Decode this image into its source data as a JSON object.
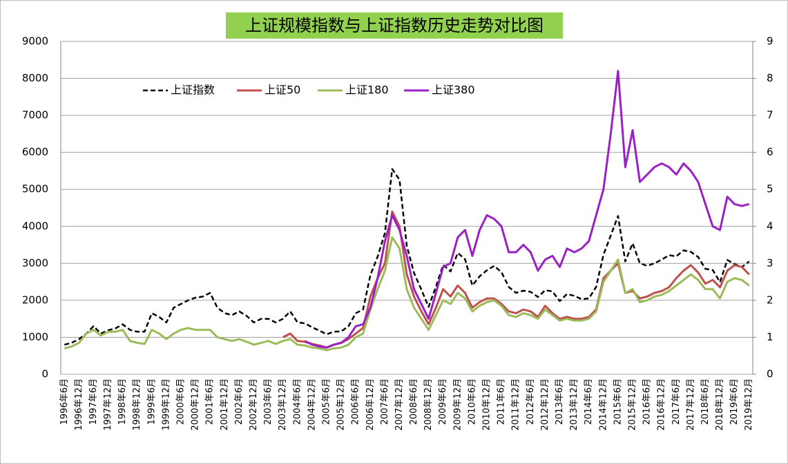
{
  "chart_data": {
    "type": "line",
    "title": "上证规模指数与上证指数历史走势对比图",
    "categories": [
      "1996年6月",
      null,
      "1996年12月",
      null,
      "1997年6月",
      null,
      "1997年12月",
      null,
      "1998年6月",
      null,
      "1998年12月",
      null,
      "1999年6月",
      null,
      "1999年12月",
      null,
      "2000年6月",
      null,
      "2000年12月",
      null,
      "2001年6月",
      null,
      "2001年12月",
      null,
      "2002年6月",
      null,
      "2002年12月",
      null,
      "2003年6月",
      null,
      "2003年12月",
      null,
      "2004年6月",
      null,
      "2004年12月",
      null,
      "2005年6月",
      null,
      "2005年12月",
      null,
      "2006年6月",
      null,
      "2006年12月",
      null,
      "2007年6月",
      null,
      "2007年12月",
      null,
      "2008年6月",
      null,
      "2008年12月",
      null,
      "2009年6月",
      null,
      "2009年12月",
      null,
      "2010年6月",
      null,
      "2010年12月",
      null,
      "2011年6月",
      null,
      "2011年12月",
      null,
      "2012年6月",
      null,
      "2012年12月",
      null,
      "2013年6月",
      null,
      "2013年12月",
      null,
      "2014年6月",
      null,
      "2014年12月",
      null,
      "2015年6月",
      null,
      "2015年12月",
      null,
      "2016年6月",
      null,
      "2016年12月",
      null,
      "2017年6月",
      null,
      "2017年12月",
      null,
      "2018年6月",
      null,
      "2018年12月",
      null,
      "2019年6月",
      null,
      "2019年12月"
    ],
    "series": [
      {
        "name": "上证指数",
        "color": "#000000",
        "style": "dashed",
        "values": [
          800,
          850,
          950,
          1100,
          1300,
          1100,
          1190,
          1240,
          1350,
          1200,
          1150,
          1150,
          1650,
          1550,
          1400,
          1800,
          1900,
          2000,
          2070,
          2100,
          2200,
          1800,
          1650,
          1600,
          1700,
          1580,
          1400,
          1500,
          1500,
          1400,
          1500,
          1700,
          1400,
          1380,
          1270,
          1180,
          1080,
          1150,
          1160,
          1300,
          1650,
          1750,
          2680,
          3180,
          3820,
          5550,
          5260,
          3470,
          2740,
          2290,
          1820,
          2370,
          2960,
          2780,
          3280,
          3110,
          2400,
          2650,
          2810,
          2930,
          2760,
          2360,
          2200,
          2260,
          2230,
          2090,
          2270,
          2240,
          1980,
          2170,
          2120,
          2030,
          2050,
          2360,
          3230,
          3750,
          4280,
          3050,
          3540,
          3000,
          2930,
          3000,
          3100,
          3220,
          3190,
          3350,
          3310,
          3170,
          2850,
          2820,
          2490,
          3090,
          2980,
          2900,
          3050
        ]
      },
      {
        "name": "上证50",
        "color": "#c0504d",
        "style": "solid",
        "axis": "y2",
        "values": [
          null,
          null,
          null,
          null,
          null,
          null,
          null,
          null,
          null,
          null,
          null,
          null,
          null,
          null,
          null,
          null,
          null,
          null,
          null,
          null,
          null,
          null,
          null,
          null,
          null,
          null,
          null,
          null,
          null,
          null,
          1.0,
          1.1,
          0.9,
          0.88,
          0.82,
          0.78,
          0.72,
          0.8,
          0.85,
          0.95,
          1.1,
          1.25,
          2.1,
          2.6,
          3.0,
          4.4,
          4.0,
          2.7,
          2.1,
          1.7,
          1.35,
          1.8,
          2.3,
          2.1,
          2.4,
          2.2,
          1.8,
          1.95,
          2.05,
          2.05,
          1.9,
          1.7,
          1.65,
          1.75,
          1.7,
          1.55,
          1.85,
          1.65,
          1.5,
          1.55,
          1.5,
          1.5,
          1.55,
          1.75,
          2.6,
          2.8,
          3.0,
          2.2,
          2.25,
          2.05,
          2.1,
          2.2,
          2.25,
          2.35,
          2.6,
          2.8,
          2.95,
          2.75,
          2.45,
          2.55,
          2.35,
          2.8,
          2.95,
          2.9,
          2.7
        ]
      },
      {
        "name": "上证180",
        "color": "#9bbb59",
        "style": "solid",
        "axis": "y2",
        "values": [
          0.7,
          0.75,
          0.85,
          1.1,
          1.2,
          1.05,
          1.15,
          1.15,
          1.2,
          0.9,
          0.85,
          0.82,
          1.2,
          1.1,
          0.95,
          1.1,
          1.2,
          1.25,
          1.2,
          1.2,
          1.2,
          1.0,
          0.95,
          0.9,
          0.95,
          0.88,
          0.8,
          0.85,
          0.9,
          0.82,
          0.9,
          0.95,
          0.8,
          0.78,
          0.72,
          0.7,
          0.65,
          0.7,
          0.72,
          0.8,
          1.0,
          1.1,
          1.75,
          2.3,
          2.8,
          3.7,
          3.4,
          2.3,
          1.8,
          1.5,
          1.2,
          1.6,
          2.0,
          1.9,
          2.2,
          2.05,
          1.7,
          1.85,
          1.95,
          2.0,
          1.85,
          1.6,
          1.55,
          1.65,
          1.6,
          1.5,
          1.75,
          1.6,
          1.45,
          1.5,
          1.45,
          1.45,
          1.5,
          1.7,
          2.5,
          2.8,
          3.1,
          2.2,
          2.3,
          1.95,
          2.0,
          2.1,
          2.15,
          2.25,
          2.4,
          2.55,
          2.7,
          2.55,
          2.3,
          2.3,
          2.05,
          2.5,
          2.6,
          2.55,
          2.4
        ]
      },
      {
        "name": "上证380",
        "color": "#9a1fc4",
        "style": "solid",
        "axis": "y2",
        "values": [
          null,
          null,
          null,
          null,
          null,
          null,
          null,
          null,
          null,
          null,
          null,
          null,
          null,
          null,
          null,
          null,
          null,
          null,
          null,
          null,
          null,
          null,
          null,
          null,
          null,
          null,
          null,
          null,
          null,
          null,
          null,
          null,
          null,
          0.9,
          0.8,
          0.75,
          0.72,
          0.8,
          0.85,
          1.0,
          1.3,
          1.35,
          1.8,
          2.6,
          3.6,
          4.3,
          3.9,
          3.2,
          2.3,
          1.9,
          1.5,
          2.2,
          2.9,
          3.0,
          3.7,
          3.9,
          3.2,
          3.9,
          4.3,
          4.2,
          4.0,
          3.3,
          3.3,
          3.5,
          3.3,
          2.8,
          3.1,
          3.2,
          2.9,
          3.4,
          3.3,
          3.4,
          3.6,
          4.3,
          5.0,
          6.5,
          8.2,
          5.6,
          6.6,
          5.2,
          5.4,
          5.6,
          5.7,
          5.6,
          5.4,
          5.7,
          5.5,
          5.2,
          4.6,
          4.0,
          3.9,
          4.8,
          4.6,
          4.55,
          4.6
        ]
      }
    ],
    "ylim": [
      0,
      9000
    ],
    "yticks": [
      0,
      1000,
      2000,
      3000,
      4000,
      5000,
      6000,
      7000,
      8000,
      9000
    ],
    "y2lim": [
      0,
      9
    ],
    "y2ticks": [
      0,
      1,
      2,
      3,
      4,
      5,
      6,
      7,
      8,
      9
    ],
    "grid": true
  }
}
